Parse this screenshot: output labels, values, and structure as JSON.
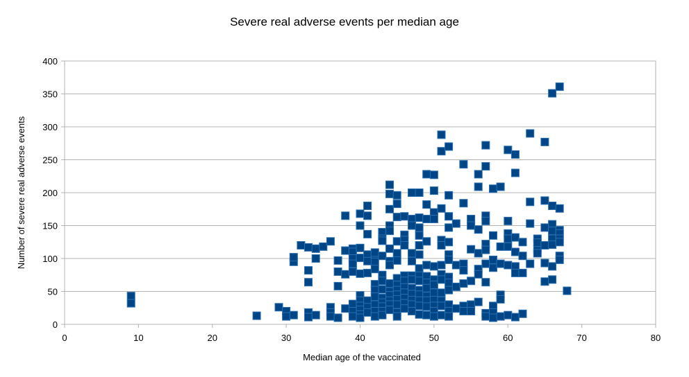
{
  "chart_data": {
    "type": "scatter",
    "title": "Severe real adverse events per median age",
    "xlabel": "Median age of the vaccinated",
    "ylabel": "Number of severe real adverse events",
    "xlim": [
      0,
      80
    ],
    "ylim": [
      0,
      400
    ],
    "xticks": [
      0,
      10,
      20,
      30,
      40,
      50,
      60,
      70,
      80
    ],
    "yticks": [
      0,
      50,
      100,
      150,
      200,
      250,
      300,
      350,
      400
    ],
    "grid": "horizontal",
    "legend": "none",
    "marker": "square",
    "color": "#004586",
    "series": [
      {
        "points": [
          [
            9,
            43
          ],
          [
            9,
            32
          ],
          [
            26,
            13
          ],
          [
            29,
            26
          ],
          [
            30,
            20
          ],
          [
            30,
            12
          ],
          [
            31,
            14
          ],
          [
            31,
            95
          ],
          [
            31,
            102
          ],
          [
            32,
            120
          ],
          [
            33,
            117
          ],
          [
            33,
            82
          ],
          [
            33,
            64
          ],
          [
            33,
            18
          ],
          [
            33,
            11
          ],
          [
            34,
            115
          ],
          [
            34,
            100
          ],
          [
            34,
            14
          ],
          [
            35,
            118
          ],
          [
            36,
            126
          ],
          [
            36,
            26
          ],
          [
            36,
            18
          ],
          [
            36,
            12
          ],
          [
            37,
            97
          ],
          [
            37,
            80
          ],
          [
            37,
            58
          ],
          [
            37,
            10
          ],
          [
            38,
            165
          ],
          [
            38,
            112
          ],
          [
            38,
            76
          ],
          [
            38,
            24
          ],
          [
            39,
            115
          ],
          [
            39,
            110
          ],
          [
            39,
            100
          ],
          [
            39,
            92
          ],
          [
            39,
            80
          ],
          [
            39,
            31
          ],
          [
            39,
            20
          ],
          [
            39,
            12
          ],
          [
            40,
            168
          ],
          [
            40,
            150
          ],
          [
            40,
            116
          ],
          [
            40,
            101
          ],
          [
            40,
            77
          ],
          [
            40,
            44
          ],
          [
            40,
            36
          ],
          [
            40,
            28
          ],
          [
            40,
            22
          ],
          [
            40,
            15
          ],
          [
            40,
            10
          ],
          [
            41,
            180
          ],
          [
            41,
            165
          ],
          [
            41,
            137
          ],
          [
            41,
            106
          ],
          [
            41,
            96
          ],
          [
            41,
            78
          ],
          [
            41,
            36
          ],
          [
            41,
            26
          ],
          [
            41,
            18
          ],
          [
            42,
            103
          ],
          [
            42,
            109
          ],
          [
            42,
            95
          ],
          [
            42,
            84
          ],
          [
            42,
            61
          ],
          [
            42,
            52
          ],
          [
            42,
            42
          ],
          [
            42,
            30
          ],
          [
            42,
            20
          ],
          [
            42,
            12
          ],
          [
            43,
            140
          ],
          [
            43,
            130
          ],
          [
            43,
            127
          ],
          [
            43,
            104
          ],
          [
            43,
            75
          ],
          [
            43,
            66
          ],
          [
            43,
            53
          ],
          [
            43,
            40
          ],
          [
            43,
            33
          ],
          [
            43,
            27
          ],
          [
            43,
            20
          ],
          [
            43,
            14
          ],
          [
            44,
            212
          ],
          [
            44,
            198
          ],
          [
            44,
            175
          ],
          [
            44,
            150
          ],
          [
            44,
            142
          ],
          [
            44,
            115
          ],
          [
            44,
            96
          ],
          [
            44,
            90
          ],
          [
            44,
            62
          ],
          [
            44,
            50
          ],
          [
            44,
            44
          ],
          [
            44,
            36
          ],
          [
            44,
            30
          ],
          [
            44,
            22
          ],
          [
            45,
            196
          ],
          [
            45,
            183
          ],
          [
            45,
            163
          ],
          [
            45,
            126
          ],
          [
            45,
            108
          ],
          [
            45,
            97
          ],
          [
            45,
            70
          ],
          [
            45,
            60
          ],
          [
            45,
            52
          ],
          [
            45,
            45
          ],
          [
            45,
            38
          ],
          [
            45,
            30
          ],
          [
            45,
            18
          ],
          [
            45,
            12
          ],
          [
            46,
            164
          ],
          [
            46,
            136
          ],
          [
            46,
            128
          ],
          [
            46,
            120
          ],
          [
            46,
            74
          ],
          [
            46,
            66
          ],
          [
            46,
            56
          ],
          [
            46,
            48
          ],
          [
            46,
            40
          ],
          [
            46,
            32
          ],
          [
            46,
            24
          ],
          [
            47,
            200
          ],
          [
            47,
            160
          ],
          [
            47,
            150
          ],
          [
            47,
            108
          ],
          [
            47,
            96
          ],
          [
            47,
            74
          ],
          [
            47,
            68
          ],
          [
            47,
            55
          ],
          [
            47,
            46
          ],
          [
            47,
            37
          ],
          [
            47,
            30
          ],
          [
            47,
            20
          ],
          [
            48,
            200
          ],
          [
            48,
            162
          ],
          [
            48,
            147
          ],
          [
            48,
            135
          ],
          [
            48,
            120
          ],
          [
            48,
            106
          ],
          [
            48,
            85
          ],
          [
            48,
            74
          ],
          [
            48,
            66
          ],
          [
            48,
            52
          ],
          [
            48,
            45
          ],
          [
            48,
            36
          ],
          [
            48,
            28
          ],
          [
            48,
            15
          ],
          [
            49,
            228
          ],
          [
            49,
            182
          ],
          [
            49,
            160
          ],
          [
            49,
            126
          ],
          [
            49,
            90
          ],
          [
            49,
            73
          ],
          [
            49,
            63
          ],
          [
            49,
            55
          ],
          [
            49,
            43
          ],
          [
            49,
            36
          ],
          [
            49,
            27
          ],
          [
            49,
            14
          ],
          [
            50,
            227
          ],
          [
            50,
            203
          ],
          [
            50,
            170
          ],
          [
            50,
            160
          ],
          [
            50,
            88
          ],
          [
            50,
            68
          ],
          [
            50,
            60
          ],
          [
            50,
            48
          ],
          [
            50,
            37
          ],
          [
            50,
            28
          ],
          [
            50,
            20
          ],
          [
            50,
            12
          ],
          [
            51,
            288
          ],
          [
            51,
            263
          ],
          [
            51,
            176
          ],
          [
            51,
            128
          ],
          [
            51,
            120
          ],
          [
            51,
            90
          ],
          [
            51,
            76
          ],
          [
            51,
            68
          ],
          [
            51,
            48
          ],
          [
            51,
            36
          ],
          [
            51,
            28
          ],
          [
            51,
            14
          ],
          [
            52,
            270
          ],
          [
            52,
            196
          ],
          [
            52,
            164
          ],
          [
            52,
            147
          ],
          [
            52,
            125
          ],
          [
            52,
            106
          ],
          [
            52,
            98
          ],
          [
            52,
            72
          ],
          [
            52,
            63
          ],
          [
            52,
            52
          ],
          [
            52,
            30
          ],
          [
            52,
            20
          ],
          [
            52,
            12
          ],
          [
            53,
            153
          ],
          [
            53,
            90
          ],
          [
            53,
            57
          ],
          [
            53,
            24
          ],
          [
            54,
            243
          ],
          [
            54,
            184
          ],
          [
            54,
            92
          ],
          [
            54,
            82
          ],
          [
            54,
            62
          ],
          [
            54,
            28
          ],
          [
            54,
            20
          ],
          [
            55,
            160
          ],
          [
            55,
            150
          ],
          [
            55,
            114
          ],
          [
            55,
            66
          ],
          [
            55,
            30
          ],
          [
            55,
            20
          ],
          [
            56,
            228
          ],
          [
            56,
            209
          ],
          [
            56,
            144
          ],
          [
            56,
            108
          ],
          [
            56,
            84
          ],
          [
            56,
            76
          ],
          [
            56,
            34
          ],
          [
            57,
            272
          ],
          [
            57,
            240
          ],
          [
            57,
            165
          ],
          [
            57,
            157
          ],
          [
            57,
            122
          ],
          [
            57,
            113
          ],
          [
            57,
            92
          ],
          [
            57,
            64
          ],
          [
            57,
            17
          ],
          [
            57,
            12
          ],
          [
            58,
            206
          ],
          [
            58,
            135
          ],
          [
            58,
            98
          ],
          [
            58,
            86
          ],
          [
            58,
            28
          ],
          [
            58,
            18
          ],
          [
            58,
            10
          ],
          [
            59,
            209
          ],
          [
            59,
            118
          ],
          [
            59,
            92
          ],
          [
            59,
            45
          ],
          [
            59,
            38
          ],
          [
            59,
            12
          ],
          [
            60,
            265
          ],
          [
            60,
            157
          ],
          [
            60,
            138
          ],
          [
            60,
            130
          ],
          [
            60,
            118
          ],
          [
            60,
            90
          ],
          [
            60,
            14
          ],
          [
            61,
            258
          ],
          [
            61,
            230
          ],
          [
            61,
            132
          ],
          [
            61,
            110
          ],
          [
            61,
            88
          ],
          [
            61,
            78
          ],
          [
            61,
            11
          ],
          [
            62,
            125
          ],
          [
            62,
            104
          ],
          [
            62,
            78
          ],
          [
            62,
            16
          ],
          [
            63,
            290
          ],
          [
            63,
            186
          ],
          [
            63,
            153
          ],
          [
            63,
            92
          ],
          [
            64,
            130
          ],
          [
            64,
            114
          ],
          [
            64,
            124
          ],
          [
            64,
            108
          ],
          [
            65,
            277
          ],
          [
            65,
            188
          ],
          [
            65,
            147
          ],
          [
            65,
            120
          ],
          [
            65,
            93
          ],
          [
            65,
            65
          ],
          [
            66,
            351
          ],
          [
            66,
            180
          ],
          [
            66,
            152
          ],
          [
            66,
            142
          ],
          [
            66,
            130
          ],
          [
            66,
            121
          ],
          [
            66,
            88
          ],
          [
            66,
            68
          ],
          [
            67,
            361
          ],
          [
            67,
            176
          ],
          [
            67,
            143
          ],
          [
            67,
            138
          ],
          [
            67,
            130
          ],
          [
            67,
            125
          ],
          [
            67,
            104
          ],
          [
            67,
            98
          ],
          [
            68,
            51
          ]
        ]
      }
    ]
  }
}
